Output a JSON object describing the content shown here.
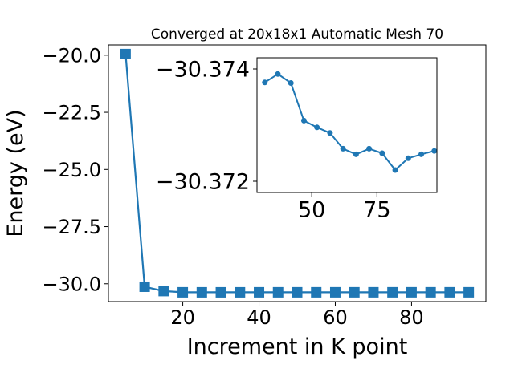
{
  "chart_data": [
    {
      "type": "line",
      "title": "Converged at 20x18x1 Automatic Mesh 70",
      "xlabel": "Increment in K point",
      "ylabel": "Energy (eV)",
      "xlim": [
        0.5,
        99.5
      ],
      "ylim": [
        -30.78,
        -19.55
      ],
      "xticks": [
        20,
        40,
        60,
        80
      ],
      "yticks": [
        -20.0,
        -22.5,
        -25.0,
        -27.5,
        -30.0
      ],
      "ytick_labels": [
        "−20.0",
        "−22.5",
        "−25.0",
        "−27.5",
        "−30.0"
      ],
      "grid": false,
      "marker": "square",
      "color": "#1f77b4",
      "x": [
        5,
        10,
        15,
        20,
        25,
        30,
        35,
        40,
        45,
        50,
        55,
        60,
        65,
        70,
        75,
        80,
        85,
        90,
        95
      ],
      "y": [
        -19.95,
        -30.13,
        -30.32,
        -30.373,
        -30.3737,
        -30.3738,
        -30.3737,
        -30.3728,
        -30.3727,
        -30.3726,
        -30.3724,
        -30.3723,
        -30.3724,
        -30.3723,
        -30.3724,
        -30.3721,
        -30.3723,
        -30.3724,
        -30.3724
      ]
    },
    {
      "type": "line",
      "title": "",
      "xlabel": "",
      "ylabel": "",
      "xlim": [
        29,
        98
      ],
      "ylim": [
        -30.3718,
        -30.3742
      ],
      "xticks": [
        50,
        75
      ],
      "yticks": [
        -30.374,
        -30.372
      ],
      "ytick_labels": [
        "−30.374",
        "−30.372"
      ],
      "grid": false,
      "marker": "circle",
      "color": "#1f77b4",
      "x": [
        32,
        37,
        42,
        47,
        52,
        57,
        62,
        67,
        72,
        77,
        82,
        87,
        92,
        97
      ],
      "y": [
        -30.37376,
        -30.37391,
        -30.37375,
        -30.37308,
        -30.37296,
        -30.37286,
        -30.37258,
        -30.37248,
        -30.37258,
        -30.3725,
        -30.3722,
        -30.37241,
        -30.37248,
        -30.37254
      ]
    }
  ]
}
